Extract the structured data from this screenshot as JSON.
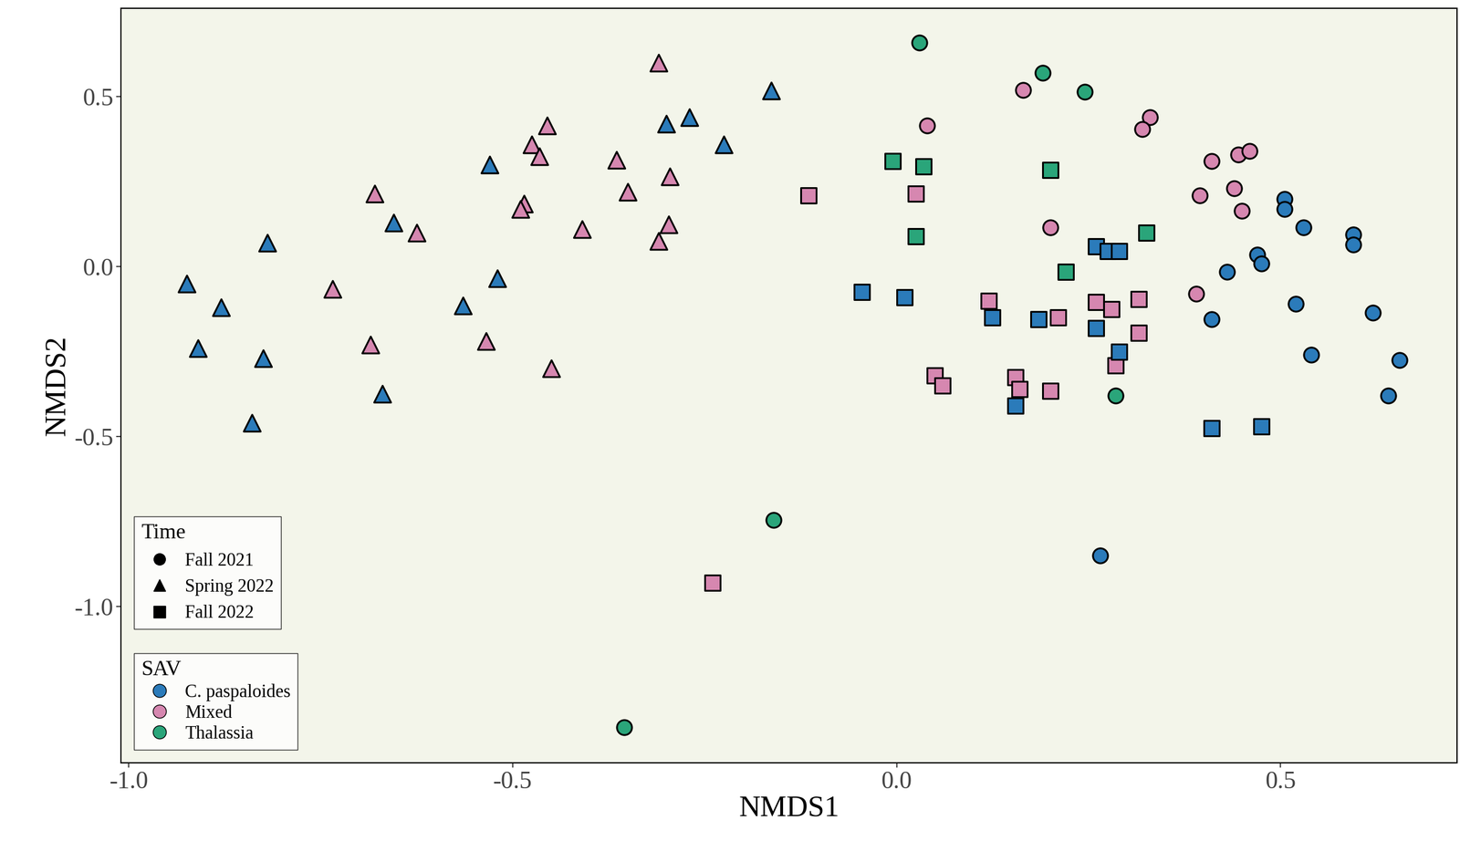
{
  "chart_data": {
    "type": "scatter",
    "xlabel": "NMDS1",
    "ylabel": "NMDS2",
    "xlim": [
      -1.01,
      0.73
    ],
    "ylim": [
      -1.46,
      0.76
    ],
    "xticks": [
      -1.0,
      -0.5,
      0.0,
      0.5
    ],
    "yticks": [
      -1.0,
      -0.5,
      0.0,
      0.5
    ],
    "grid": false,
    "legend": "lower left",
    "legend_groups": [
      {
        "title": "Time",
        "entries": [
          {
            "name": "Fall 2021",
            "marker": "circle"
          },
          {
            "name": "Spring 2022",
            "marker": "triangle"
          },
          {
            "name": "Fall 2022",
            "marker": "square"
          }
        ]
      },
      {
        "title": "SAV",
        "entries": [
          {
            "name": "C. paspaloides",
            "color": "#2b7bba"
          },
          {
            "name": "Mixed",
            "color": "#d687b0"
          },
          {
            "name": "Thalassia",
            "color": "#2aa57a"
          }
        ]
      }
    ],
    "series": [
      {
        "time": "Spring 2022",
        "sav": "C. paspaloides",
        "x": [
          -0.163,
          -0.3,
          -0.27,
          -0.225,
          -0.53,
          -0.655,
          -0.82,
          -0.925,
          -0.88,
          -0.91,
          -0.825,
          -0.52,
          -0.565,
          -0.67,
          -0.84
        ],
        "y": [
          0.518,
          0.42,
          0.44,
          0.36,
          0.3,
          0.13,
          0.07,
          -0.05,
          -0.12,
          -0.24,
          -0.27,
          -0.035,
          -0.115,
          -0.375,
          -0.46
        ]
      },
      {
        "time": "Spring 2022",
        "sav": "Mixed",
        "x": [
          -0.31,
          -0.455,
          -0.475,
          -0.465,
          -0.365,
          -0.35,
          -0.295,
          -0.485,
          -0.49,
          -0.297,
          -0.41,
          -0.31,
          -0.625,
          -0.68,
          -0.735,
          -0.685,
          -0.535,
          -0.45
        ],
        "y": [
          0.6,
          0.415,
          0.36,
          0.325,
          0.315,
          0.22,
          0.265,
          0.185,
          0.17,
          0.125,
          0.11,
          0.075,
          0.1,
          0.215,
          -0.065,
          -0.23,
          -0.22,
          -0.3
        ]
      },
      {
        "time": "Fall 2021",
        "sav": "Thalassia",
        "x": [
          0.03,
          0.19,
          0.245,
          0.285,
          -0.16,
          -0.355
        ],
        "y": [
          0.66,
          0.57,
          0.515,
          -0.38,
          -0.745,
          -1.355
        ]
      },
      {
        "time": "Fall 2021",
        "sav": "Mixed",
        "x": [
          0.165,
          0.04,
          0.33,
          0.32,
          0.41,
          0.445,
          0.46,
          0.395,
          0.44,
          0.45,
          0.2,
          0.39
        ],
        "y": [
          0.52,
          0.415,
          0.44,
          0.405,
          0.31,
          0.33,
          0.34,
          0.21,
          0.23,
          0.165,
          0.115,
          -0.08
        ]
      },
      {
        "time": "Fall 2021",
        "sav": "C. paspaloides",
        "x": [
          0.505,
          0.505,
          0.53,
          0.595,
          0.595,
          0.47,
          0.475,
          0.43,
          0.52,
          0.41,
          0.62,
          0.54,
          0.655,
          0.64,
          0.265
        ],
        "y": [
          0.2,
          0.17,
          0.115,
          0.095,
          0.065,
          0.035,
          0.01,
          -0.015,
          -0.11,
          -0.155,
          -0.135,
          -0.26,
          -0.275,
          -0.38,
          -0.85
        ]
      },
      {
        "time": "Fall 2022",
        "sav": "Thalassia",
        "x": [
          -0.005,
          0.035,
          0.2,
          0.025,
          0.325,
          0.22
        ],
        "y": [
          0.31,
          0.295,
          0.285,
          0.09,
          0.1,
          -0.015
        ]
      },
      {
        "time": "Fall 2022",
        "sav": "Mixed",
        "x": [
          -0.115,
          0.025,
          0.12,
          0.21,
          0.26,
          0.28,
          0.315,
          0.315,
          0.285,
          0.05,
          0.06,
          0.155,
          0.16,
          0.2,
          -0.24
        ],
        "y": [
          0.21,
          0.215,
          -0.1,
          -0.15,
          -0.105,
          -0.125,
          -0.095,
          -0.195,
          -0.29,
          -0.32,
          -0.35,
          -0.325,
          -0.36,
          -0.365,
          -0.93
        ]
      },
      {
        "time": "Fall 2022",
        "sav": "C. paspaloides",
        "x": [
          -0.045,
          0.01,
          0.125,
          0.185,
          0.26,
          0.275,
          0.29,
          0.26,
          0.29,
          0.155,
          0.41,
          0.475
        ],
        "y": [
          -0.075,
          -0.09,
          -0.15,
          -0.155,
          0.06,
          0.045,
          0.045,
          -0.18,
          -0.25,
          -0.41,
          -0.475,
          -0.47
        ]
      }
    ]
  }
}
